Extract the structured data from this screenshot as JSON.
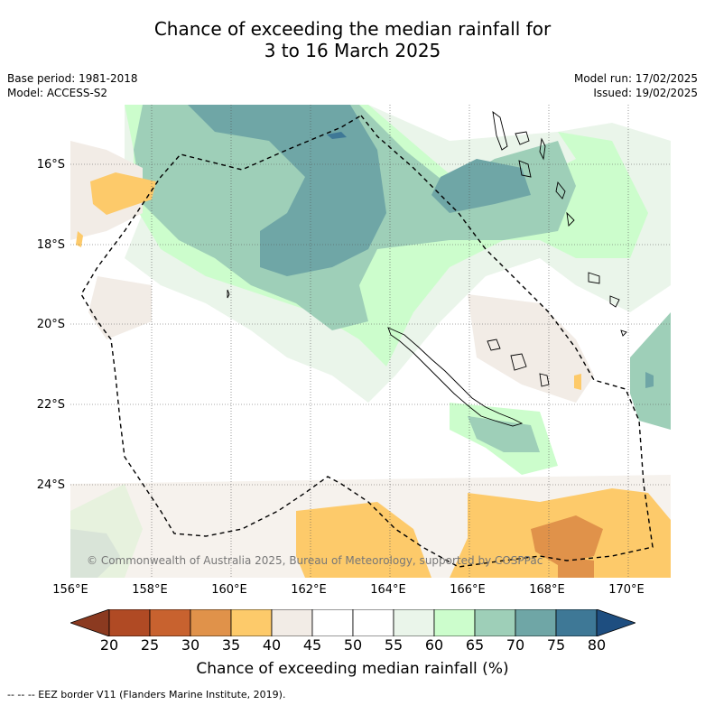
{
  "title": {
    "line1": "Chance of exceeding the median rainfall for",
    "line2": "3 to 16 March 2025"
  },
  "meta": {
    "base_period": "Base period: 1981-2018",
    "model": "Model: ACCESS-S2",
    "model_run": "Model run: 17/02/2025",
    "issued": "Issued: 19/02/2025"
  },
  "axes": {
    "lat_labels": [
      "16°S",
      "18°S",
      "20°S",
      "22°S",
      "24°S"
    ],
    "lon_labels": [
      "156°E",
      "158°E",
      "160°E",
      "162°E",
      "164°E",
      "166°E",
      "168°E",
      "170°E"
    ]
  },
  "copyright": "© Commonwealth of Australia 2025, Bureau of Meteorology, supported by COSPPac",
  "colorbar": {
    "ticks": [
      "20",
      "25",
      "30",
      "35",
      "40",
      "45",
      "50",
      "55",
      "60",
      "65",
      "70",
      "75",
      "80"
    ],
    "colors": [
      "#8b3a20",
      "#b04a24",
      "#c8622f",
      "#e0924a",
      "#fdca6a",
      "#f2ece6",
      "#ffffff",
      "#ffffff",
      "#eaf5ea",
      "#ccfdcc",
      "#9ecfb8",
      "#6fa6a6",
      "#3e7896",
      "#1e4e80"
    ],
    "label": "Chance of exceeding median rainfall (%)"
  },
  "footnote": "--  --  -- EEZ border V11 (Flanders Marine Institute, 2019)."
}
